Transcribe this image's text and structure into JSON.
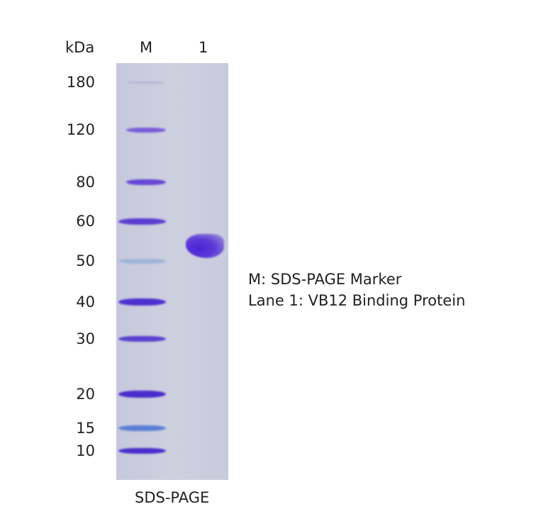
{
  "header": {
    "unit": "kDa",
    "lane_marker": "M",
    "lane_1": "1"
  },
  "markers": [
    {
      "label": "180",
      "color": "#b8b6d8"
    },
    {
      "label": "120",
      "color": "#7a5ed8"
    },
    {
      "label": "80",
      "color": "#6546d6"
    },
    {
      "label": "60",
      "color": "#5b3cd2"
    },
    {
      "label": "50",
      "color": "#9fb4d8"
    },
    {
      "label": "40",
      "color": "#4e30d0"
    },
    {
      "label": "30",
      "color": "#5a40d0"
    },
    {
      "label": "20",
      "color": "#4a2ccc"
    },
    {
      "label": "15",
      "color": "#5a7ed6"
    },
    {
      "label": "10",
      "color": "#4a2ccc"
    }
  ],
  "legend": {
    "line1": "M: SDS-PAGE Marker",
    "line2": "Lane 1: VB12 Binding Protein"
  },
  "footer": "SDS-PAGE"
}
